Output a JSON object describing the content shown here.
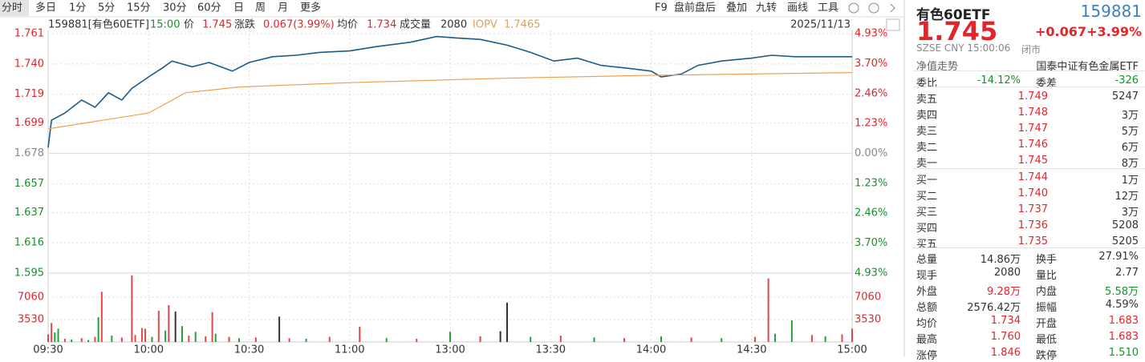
{
  "toolbar": {
    "periods": [
      "分时",
      "多日",
      "1分",
      "5分",
      "15分",
      "30分",
      "60分",
      "日",
      "周",
      "月",
      "更多"
    ],
    "tools": [
      "F9",
      "盘前盘后",
      "叠加",
      "九转",
      "画线",
      "工具"
    ]
  },
  "header": {
    "symbol": "159881[有色60ETF]",
    "time": "15:00",
    "price": "1.745",
    "change_label": "涨跌",
    "change": "0.067(3.99%)",
    "avg": "1.734",
    "volume_label": "成交量",
    "volume": "2080",
    "iopv_label": "IOPV",
    "iopv": "1.7465",
    "date": "2025/11/13"
  },
  "chart_data": {
    "type": "line",
    "xlim": [
      0,
      240
    ],
    "xticks": [
      {
        "value": 0,
        "label": "09:30"
      },
      {
        "value": 30,
        "label": "10:00"
      },
      {
        "value": 60,
        "label": "10:30"
      },
      {
        "value": 90,
        "label": "11:00"
      },
      {
        "value": 120,
        "label": "13:00"
      },
      {
        "value": 150,
        "label": "13:30"
      },
      {
        "value": 180,
        "label": "14:00"
      },
      {
        "value": 210,
        "label": "14:30"
      },
      {
        "value": 240,
        "label": "15:00"
      }
    ],
    "ylim": [
      1.595,
      1.761
    ],
    "yticks": [
      1.761,
      {
        "value": 1.74,
        "label": "1.740"
      },
      1.719,
      1.699,
      1.678,
      1.657,
      1.637,
      1.616,
      1.595
    ],
    "y2lim": [
      -4.93,
      4.93
    ],
    "y2ticks": [
      {
        "value": 4.93,
        "label": "4.93%"
      },
      {
        "value": 3.7,
        "label": "3.70%"
      },
      {
        "value": 2.46,
        "label": "2.46%"
      },
      {
        "value": 1.23,
        "label": "1.23%"
      },
      {
        "value": 0,
        "label": "0.00%"
      },
      {
        "value": -1.23,
        "label": "1.23%"
      },
      {
        "value": -2.46,
        "label": "2.46%"
      },
      {
        "value": -3.7,
        "label": "3.70%"
      },
      {
        "value": -4.93,
        "label": "4.93%"
      }
    ],
    "grid": true,
    "series": [
      {
        "name": "价",
        "color": "#1d5a86",
        "x": [
          0,
          1,
          5,
          10,
          14,
          18,
          22,
          25,
          30,
          34,
          37,
          43,
          48,
          55,
          60,
          67,
          74,
          81,
          90,
          98,
          108,
          116,
          122,
          129,
          137,
          144,
          151,
          158,
          165,
          173,
          180,
          183,
          189,
          194,
          201,
          210,
          216,
          223,
          232,
          240
        ],
        "values": [
          1.682,
          1.701,
          1.706,
          1.715,
          1.71,
          1.72,
          1.715,
          1.723,
          1.731,
          1.737,
          1.742,
          1.738,
          1.741,
          1.735,
          1.741,
          1.745,
          1.746,
          1.748,
          1.749,
          1.752,
          1.755,
          1.759,
          1.758,
          1.757,
          1.753,
          1.748,
          1.742,
          1.744,
          1.739,
          1.737,
          1.735,
          1.731,
          1.733,
          1.739,
          1.742,
          1.744,
          1.746,
          1.745,
          1.745,
          1.745
        ]
      },
      {
        "name": "均价",
        "color": "#f0a050",
        "x": [
          0,
          30,
          41,
          57,
          90,
          135,
          178,
          240
        ],
        "values": [
          1.695,
          1.706,
          1.72,
          1.724,
          1.727,
          1.73,
          1.732,
          1.734
        ]
      }
    ],
    "volume": {
      "ylim": [
        0,
        10590
      ],
      "yticks": [
        7060,
        3530
      ],
      "x": [
        0,
        1,
        2,
        3,
        5,
        7,
        10,
        12,
        14,
        15,
        16,
        19,
        22,
        25,
        26,
        28,
        29,
        31,
        33,
        35,
        36,
        38,
        40,
        42,
        44,
        47,
        49,
        50,
        54,
        57,
        62,
        69,
        72,
        77,
        84,
        93,
        101,
        110,
        120,
        129,
        135,
        137,
        144,
        153,
        163,
        172,
        183,
        192,
        201,
        211,
        215,
        217,
        222,
        228,
        232,
        237,
        240
      ],
      "values": [
        1200,
        3000,
        1500,
        2100,
        500,
        400,
        600,
        300,
        800,
        3900,
        7900,
        1000,
        700,
        10500,
        1100,
        2200,
        2100,
        800,
        4900,
        1800,
        5800,
        4800,
        2500,
        1000,
        1600,
        900,
        4700,
        1300,
        800,
        600,
        700,
        4000,
        600,
        500,
        800,
        2400,
        600,
        500,
        1600,
        900,
        1700,
        6200,
        800,
        1000,
        700,
        600,
        900,
        700,
        600,
        800,
        10000,
        1300,
        3400,
        1100,
        900,
        1200,
        2100
      ],
      "colors": [
        "#e0474c",
        "#e0474c",
        "#2a9d3b",
        "#2a9d3b",
        "#e0474c",
        "#2a9d3b",
        "#e0474c",
        "#2a9d3b",
        "#e0474c",
        "#2a9d3b",
        "#e0474c",
        "#2a9d3b",
        "#e0474c",
        "#e0474c",
        "#e0474c",
        "#e0474c",
        "#e0474c",
        "#2a9d3b",
        "#e0474c",
        "#2a9d3b",
        "#e0474c",
        "#333333",
        "#2a9d3b",
        "#e0474c",
        "#2a9d3b",
        "#e0474c",
        "#e0474c",
        "#2a9d3b",
        "#e0474c",
        "#2a9d3b",
        "#e0474c",
        "#333333",
        "#e0474c",
        "#2a9d3b",
        "#e0474c",
        "#e0474c",
        "#2a9d3b",
        "#e0474c",
        "#2a9d3b",
        "#e0474c",
        "#333333",
        "#333333",
        "#2a9d3b",
        "#e0474c",
        "#2a9d3b",
        "#e0474c",
        "#2a9d3b",
        "#e0474c",
        "#2a9d3b",
        "#e0474c",
        "#e0474c",
        "#2a9d3b",
        "#2a9d3b",
        "#e0474c",
        "#2a9d3b",
        "#e0474c",
        "#e0474c"
      ]
    }
  },
  "quote": {
    "name": "有色60ETF",
    "code": "159881",
    "price": "1.745",
    "change": "+0.067",
    "change_pct": "+3.99%",
    "info": "SZSE  CNY  15:00:06",
    "status": "闭市",
    "nav_label": "净值走势",
    "fund_name": "国泰中证有色金属ETF",
    "ratio_label": "委比",
    "ratio": "-14.12%",
    "diff_label": "委差",
    "diff": "-326",
    "book": [
      {
        "label": "卖五",
        "price": "1.749",
        "volume": "5247"
      },
      {
        "label": "卖四",
        "price": "1.748",
        "volume": "3万"
      },
      {
        "label": "卖三",
        "price": "1.747",
        "volume": "5万"
      },
      {
        "label": "卖二",
        "price": "1.746",
        "volume": "6万"
      },
      {
        "label": "卖一",
        "price": "1.745",
        "volume": "8万"
      },
      {
        "label": "买一",
        "price": "1.744",
        "volume": "1万"
      },
      {
        "label": "买二",
        "price": "1.740",
        "volume": "12万"
      },
      {
        "label": "买三",
        "price": "1.737",
        "volume": "3万"
      },
      {
        "label": "买四",
        "price": "1.736",
        "volume": "5208"
      },
      {
        "label": "买五",
        "price": "1.735",
        "volume": "5205"
      }
    ],
    "stats": [
      {
        "label": "总量",
        "value": "14.86万"
      },
      {
        "label": "换手",
        "value": "27.91%"
      },
      {
        "label": "现手",
        "value": "2080"
      },
      {
        "label": "量比",
        "value": "2.77"
      },
      {
        "label": "外盘",
        "value": "9.28万"
      },
      {
        "label": "内盘",
        "value": "5.58万"
      },
      {
        "label": "总额",
        "value": "2576.42万"
      },
      {
        "label": "振幅",
        "value": "4.59%"
      },
      {
        "label": "均价",
        "value": "1.734"
      },
      {
        "label": "开盘",
        "value": "1.683"
      },
      {
        "label": "最高",
        "value": "1.760"
      },
      {
        "label": "最低",
        "value": "1.683"
      },
      {
        "label": "涨停",
        "value": "1.846"
      },
      {
        "label": "跌停",
        "value": "1.510"
      }
    ]
  }
}
